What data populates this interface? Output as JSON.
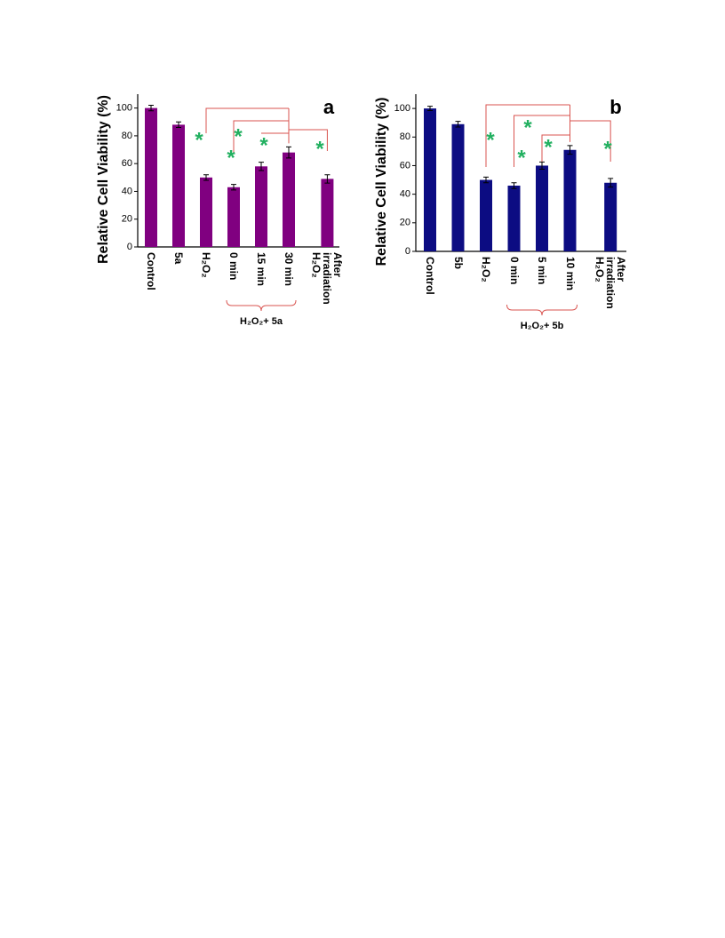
{
  "chart_data": [
    {
      "type": "bar",
      "panel_label": "a",
      "y_label": "Relative Cell Viability (%)",
      "categories": [
        "Control",
        "5a",
        "H₂O₂",
        "0 min",
        "15 min",
        "30 min",
        "After\nirradiation\nH₂O₂"
      ],
      "values": [
        100,
        88,
        50,
        43,
        58,
        68,
        49
      ],
      "errors": [
        2,
        2,
        2,
        2,
        3,
        4,
        3
      ],
      "color": "#800080",
      "ylim": [
        0,
        110
      ],
      "yticks": [
        0,
        20,
        40,
        60,
        80,
        100
      ],
      "group_label": "H₂O₂+ 5a",
      "annotations": [
        "*",
        "*",
        "*",
        "*",
        "*"
      ]
    },
    {
      "type": "bar",
      "panel_label": "b",
      "y_label": "Relative Cell Viability (%)",
      "categories": [
        "Control",
        "5b",
        "H₂O₂",
        "0 min",
        "5 min",
        "10 min",
        "After\nirradiation\nH₂O₂"
      ],
      "values": [
        100,
        89,
        50,
        46,
        60,
        71,
        48
      ],
      "errors": [
        1.5,
        2,
        2,
        2,
        2.5,
        3,
        3
      ],
      "color": "#0c0c82",
      "ylim": [
        0,
        110
      ],
      "yticks": [
        0,
        20,
        40,
        60,
        80,
        100
      ],
      "group_label": "H₂O₂+ 5b",
      "annotations": [
        "*",
        "*",
        "*",
        "*",
        "*"
      ]
    }
  ]
}
